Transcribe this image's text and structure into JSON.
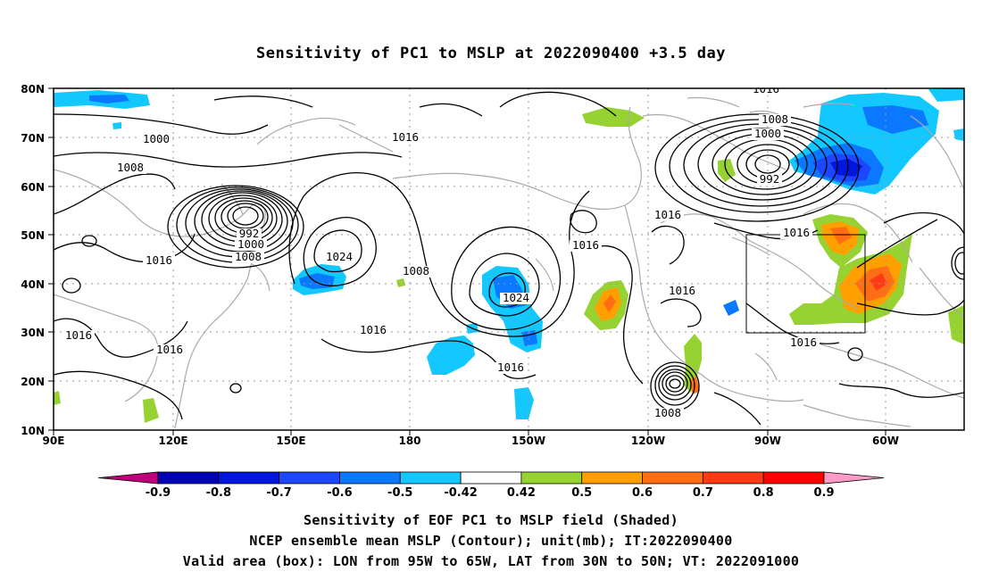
{
  "title": "Sensitivity of PC1 to MSLP at 2022090400 +3.5 day",
  "map": {
    "lon_range": [
      "90E",
      "40W"
    ],
    "lat_range": [
      10,
      80
    ],
    "lat_ticks": [
      "80N",
      "70N",
      "60N",
      "50N",
      "40N",
      "30N",
      "20N",
      "10N"
    ],
    "lon_ticks": [
      "90E",
      "120E",
      "150E",
      "180",
      "150W",
      "120W",
      "90W",
      "60W"
    ],
    "valid_box": {
      "lon_west": "95W",
      "lon_east": "65W",
      "lat_south": "30N",
      "lat_north": "50N"
    },
    "contour_labels": [
      "1016",
      "1000",
      "1016",
      "1008",
      "1008",
      "1000",
      "992",
      "992",
      "1000",
      "1008",
      "1016",
      "1016",
      "1024",
      "1008",
      "1024",
      "1016",
      "1016",
      "1016",
      "1016",
      "1016",
      "1016",
      "1016",
      "1016",
      "1016",
      "1008"
    ],
    "colors": {
      "coast": "#aaaaaa",
      "grid": "#9a9a9a",
      "contour": "#000000",
      "box": "#000000"
    }
  },
  "colorbar": {
    "labels": [
      "-0.9",
      "-0.8",
      "-0.7",
      "-0.6",
      "-0.5",
      "-0.42",
      "0.42",
      "0.5",
      "0.6",
      "0.7",
      "0.8",
      "0.9"
    ],
    "colors": [
      "#c0007a",
      "#0000b4",
      "#0016dc",
      "#1c46ff",
      "#0a78ff",
      "#12c8ff",
      "#ffffff",
      "#96d232",
      "#ffa000",
      "#ff6e14",
      "#ff3a14",
      "#ff0000",
      "#ff9bc8"
    ]
  },
  "captions": {
    "line1": "Sensitivity of EOF PC1 to MSLP field (Shaded)",
    "line2": "NCEP ensemble mean MSLP (Contour); unit(mb); IT:2022090400",
    "line3": "Valid area (box): LON from 95W to 65W, LAT from 30N to 50N; VT: 2022091000"
  }
}
